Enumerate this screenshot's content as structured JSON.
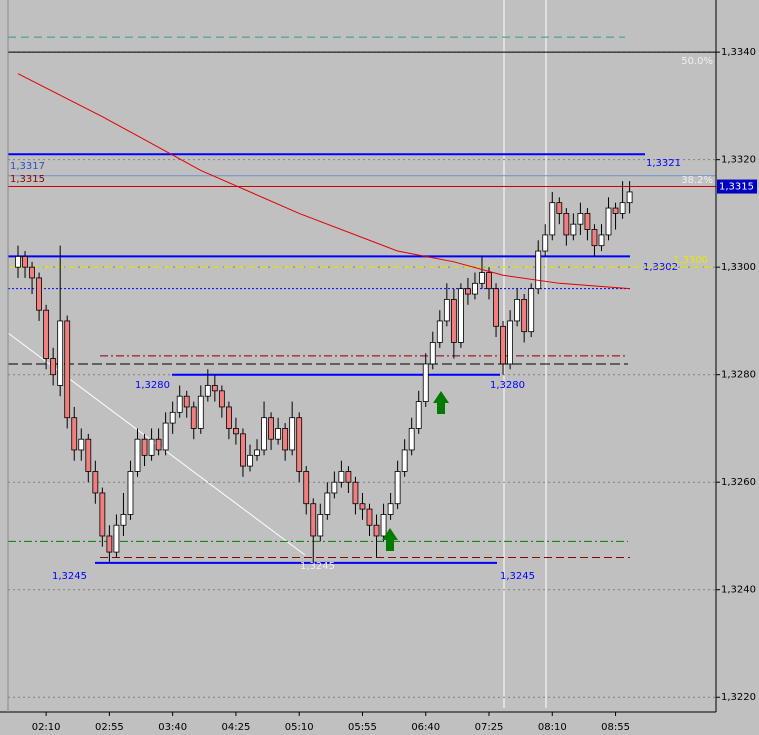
{
  "chart_data": {
    "type": "candlestick",
    "categories": [
      null,
      null,
      null,
      null,
      "02:10",
      null,
      null,
      null,
      null,
      null,
      null,
      null,
      null,
      "02:55",
      null,
      null,
      null,
      null,
      null,
      null,
      null,
      null,
      "03:40",
      null,
      null,
      null,
      null,
      null,
      null,
      null,
      null,
      "04:25",
      null,
      null,
      null,
      null,
      null,
      null,
      null,
      null,
      "05:10",
      null,
      null,
      null,
      null,
      null,
      null,
      null,
      null,
      "05:55",
      null,
      null,
      null,
      null,
      null,
      null,
      null,
      null,
      "06:40",
      null,
      null,
      null,
      null,
      null,
      null,
      null,
      null,
      "07:25",
      null,
      null,
      null,
      null,
      null,
      null,
      null,
      null,
      "08:10",
      null,
      null,
      null,
      null,
      null,
      null,
      null,
      null,
      "08:55",
      null,
      null
    ],
    "ohlc": [
      [
        1.33,
        1.3304,
        1.3298,
        1.3302
      ],
      [
        1.3302,
        1.3303,
        1.3298,
        1.33
      ],
      [
        1.33,
        1.3301,
        1.3295,
        1.3298
      ],
      [
        1.3298,
        1.3299,
        1.329,
        1.3292
      ],
      [
        1.3292,
        1.3293,
        1.3281,
        1.3283
      ],
      [
        1.3283,
        1.3285,
        1.3278,
        1.328
      ],
      [
        1.3278,
        1.3304,
        1.3276,
        1.329
      ],
      [
        1.329,
        1.3291,
        1.327,
        1.3272
      ],
      [
        1.3272,
        1.3274,
        1.3264,
        1.3266
      ],
      [
        1.3266,
        1.327,
        1.3264,
        1.3268
      ],
      [
        1.3268,
        1.3269,
        1.326,
        1.3262
      ],
      [
        1.3262,
        1.3264,
        1.3256,
        1.3258
      ],
      [
        1.3258,
        1.3259,
        1.3248,
        1.325
      ],
      [
        1.325,
        1.3252,
        1.3245,
        1.3247
      ],
      [
        1.3247,
        1.3254,
        1.3246,
        1.3252
      ],
      [
        1.3252,
        1.3258,
        1.325,
        1.3254
      ],
      [
        1.3254,
        1.3264,
        1.3253,
        1.3262
      ],
      [
        1.3262,
        1.327,
        1.3261,
        1.3268
      ],
      [
        1.3268,
        1.3269,
        1.3263,
        1.3265
      ],
      [
        1.3265,
        1.327,
        1.3264,
        1.3268
      ],
      [
        1.3268,
        1.327,
        1.3265,
        1.3266
      ],
      [
        1.3266,
        1.3273,
        1.3265,
        1.3271
      ],
      [
        1.3271,
        1.3275,
        1.3269,
        1.3273
      ],
      [
        1.3273,
        1.3278,
        1.3272,
        1.3276
      ],
      [
        1.3276,
        1.3277,
        1.3272,
        1.3274
      ],
      [
        1.3274,
        1.3275,
        1.3268,
        1.327
      ],
      [
        1.327,
        1.3278,
        1.3269,
        1.3276
      ],
      [
        1.3276,
        1.3281,
        1.3275,
        1.3278
      ],
      [
        1.3278,
        1.328,
        1.3275,
        1.3277
      ],
      [
        1.3277,
        1.3278,
        1.3272,
        1.3274
      ],
      [
        1.3274,
        1.3275,
        1.3268,
        1.327
      ],
      [
        1.327,
        1.3272,
        1.3267,
        1.3269
      ],
      [
        1.3269,
        1.327,
        1.3261,
        1.3263
      ],
      [
        1.3263,
        1.3267,
        1.3262,
        1.3265
      ],
      [
        1.3265,
        1.3268,
        1.3264,
        1.3266
      ],
      [
        1.3266,
        1.3275,
        1.3265,
        1.3272
      ],
      [
        1.3272,
        1.3273,
        1.3266,
        1.3268
      ],
      [
        1.3268,
        1.3272,
        1.3267,
        1.327
      ],
      [
        1.327,
        1.3271,
        1.3264,
        1.3266
      ],
      [
        1.3266,
        1.3275,
        1.3265,
        1.3272
      ],
      [
        1.3272,
        1.3273,
        1.326,
        1.3262
      ],
      [
        1.3262,
        1.3263,
        1.3254,
        1.3256
      ],
      [
        1.3256,
        1.3257,
        1.3245,
        1.325
      ],
      [
        1.325,
        1.3256,
        1.3249,
        1.3254
      ],
      [
        1.3254,
        1.326,
        1.3253,
        1.3258
      ],
      [
        1.3258,
        1.3262,
        1.3257,
        1.326
      ],
      [
        1.326,
        1.3264,
        1.3259,
        1.3262
      ],
      [
        1.3262,
        1.3263,
        1.3258,
        1.326
      ],
      [
        1.326,
        1.3261,
        1.3254,
        1.3256
      ],
      [
        1.3256,
        1.3258,
        1.3253,
        1.3255
      ],
      [
        1.3255,
        1.3256,
        1.325,
        1.3252
      ],
      [
        1.3252,
        1.3254,
        1.3246,
        1.325
      ],
      [
        1.325,
        1.3256,
        1.3249,
        1.3254
      ],
      [
        1.3254,
        1.3258,
        1.3253,
        1.3256
      ],
      [
        1.3256,
        1.3264,
        1.3255,
        1.3262
      ],
      [
        1.3262,
        1.3268,
        1.3261,
        1.3266
      ],
      [
        1.3266,
        1.3272,
        1.3265,
        1.327
      ],
      [
        1.327,
        1.3277,
        1.3269,
        1.3275
      ],
      [
        1.3275,
        1.3284,
        1.3274,
        1.3282
      ],
      [
        1.3282,
        1.3288,
        1.3281,
        1.3286
      ],
      [
        1.3286,
        1.3292,
        1.3285,
        1.329
      ],
      [
        1.329,
        1.3297,
        1.3289,
        1.3294
      ],
      [
        1.3294,
        1.3296,
        1.3283,
        1.3286
      ],
      [
        1.3286,
        1.3297,
        1.3285,
        1.3296
      ],
      [
        1.3296,
        1.3298,
        1.3293,
        1.3295
      ],
      [
        1.3295,
        1.3299,
        1.3294,
        1.3297
      ],
      [
        1.3297,
        1.3302,
        1.3296,
        1.3299
      ],
      [
        1.3299,
        1.33,
        1.3294,
        1.3296
      ],
      [
        1.3296,
        1.3297,
        1.3287,
        1.3289
      ],
      [
        1.3289,
        1.329,
        1.328,
        1.3282
      ],
      [
        1.3282,
        1.3292,
        1.3281,
        1.329
      ],
      [
        1.329,
        1.3296,
        1.3289,
        1.3294
      ],
      [
        1.3294,
        1.3295,
        1.3286,
        1.3288
      ],
      [
        1.3288,
        1.3297,
        1.3287,
        1.3296
      ],
      [
        1.3296,
        1.3305,
        1.3295,
        1.3303
      ],
      [
        1.3303,
        1.3308,
        1.3302,
        1.3306
      ],
      [
        1.3306,
        1.3314,
        1.3305,
        1.3312
      ],
      [
        1.3312,
        1.3313,
        1.3308,
        1.331
      ],
      [
        1.331,
        1.3311,
        1.3304,
        1.3306
      ],
      [
        1.3306,
        1.331,
        1.3305,
        1.3308
      ],
      [
        1.3308,
        1.3312,
        1.3306,
        1.331
      ],
      [
        1.331,
        1.3311,
        1.3305,
        1.3307
      ],
      [
        1.3307,
        1.3308,
        1.3302,
        1.3304
      ],
      [
        1.3304,
        1.3308,
        1.3303,
        1.3306
      ],
      [
        1.3306,
        1.3313,
        1.3305,
        1.3311
      ],
      [
        1.3311,
        1.3312,
        1.3307,
        1.331
      ],
      [
        1.331,
        1.3316,
        1.3309,
        1.3312
      ],
      [
        1.3312,
        1.3316,
        1.331,
        1.3314
      ]
    ],
    "up_color": "#ffffff",
    "down_color": "#f08080",
    "moving_average": {
      "color": "#e00000",
      "x": [
        0,
        12,
        26,
        40,
        54,
        62,
        69,
        77,
        87
      ],
      "values": [
        1.3336,
        1.3328,
        1.3318,
        1.331,
        1.3303,
        1.3301,
        1.32985,
        1.3297,
        1.3296
      ]
    },
    "ylim": [
      1.3218,
      1.33497
    ],
    "yticks": [
      {
        "value": 1.334,
        "label": "1,3340"
      },
      {
        "value": 1.332,
        "label": "1,3320"
      },
      {
        "value": 1.33,
        "label": "1,3300"
      },
      {
        "value": 1.328,
        "label": "1,3280"
      },
      {
        "value": 1.326,
        "label": "1,3260"
      },
      {
        "value": 1.324,
        "label": "1,3240"
      },
      {
        "value": 1.322,
        "label": "1,3220"
      }
    ],
    "grid": true,
    "last_price": {
      "value": 1.3315,
      "label": "1,3315"
    },
    "levels": [
      {
        "value": 1.33428,
        "color": "#2a9d8f",
        "dash": "8,5",
        "width": 1,
        "labels": []
      },
      {
        "value": 1.334,
        "color": "#000000",
        "dash": "",
        "width": 1,
        "labels": [
          "50.0%"
        ]
      },
      {
        "value": 1.3321,
        "color": "#0000ff",
        "dash": "",
        "width": 2,
        "labels": [
          "1,3321"
        ]
      },
      {
        "value": 1.3317,
        "color": "#6a8fd0",
        "dash": "",
        "width": 1,
        "labels": [
          "1,3317"
        ]
      },
      {
        "value": 1.3315,
        "color": "#cc0000",
        "dash": "",
        "width": 1,
        "labels": [
          "1,3315",
          "38.2%"
        ]
      },
      {
        "value": 1.3302,
        "color": "#0000ff",
        "dash": "",
        "width": 2,
        "labels": [
          "1,3302"
        ]
      },
      {
        "value": 1.33,
        "color": "#e8e800",
        "dash": "8,4",
        "width": 1,
        "labels": [
          "1,3300"
        ]
      },
      {
        "value": 1.3296,
        "color": "#0000ff",
        "dash": "2,2",
        "width": 1,
        "labels": []
      },
      {
        "value": 1.32835,
        "color": "#8b0000",
        "dash": "8,3,2,3",
        "width": 1,
        "labels": []
      },
      {
        "value": 1.3282,
        "color": "#000000",
        "dash": "10,4",
        "width": 1,
        "labels": []
      },
      {
        "value": 1.328,
        "color": "#0000ff",
        "dash": "",
        "width": 2,
        "labels": [
          "1,3280",
          "1,3280"
        ]
      },
      {
        "value": 1.3249,
        "color": "#008000",
        "dash": "8,3,2,3",
        "width": 1,
        "labels": []
      },
      {
        "value": 1.3246,
        "color": "#8b0000",
        "dash": "8,4",
        "width": 1,
        "labels": []
      },
      {
        "value": 1.3245,
        "color": "#0000ff",
        "dash": "",
        "width": 2,
        "labels": [
          "1,3245",
          "1,3245",
          "1,3245"
        ]
      }
    ]
  }
}
